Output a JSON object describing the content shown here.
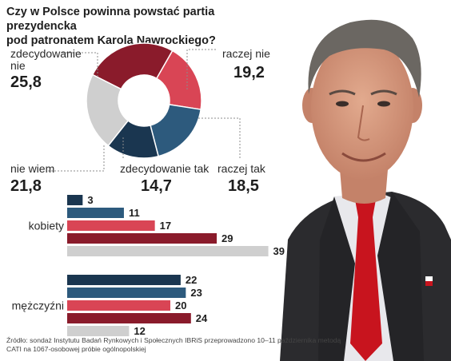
{
  "title": {
    "line1": "Czy w Polsce powinna powstać partia prezydencka",
    "line2": "pod patronatem Karola Nawrockiego?"
  },
  "chart_data": [
    {
      "type": "pie",
      "variant": "donut",
      "slices": [
        {
          "label_line1": "zdecydowanie",
          "label_line2": "nie",
          "value": 25.8,
          "value_text": "25,8",
          "color": "#8a1b2b"
        },
        {
          "label_line1": "raczej nie",
          "label_line2": "",
          "value": 19.2,
          "value_text": "19,2",
          "color": "#d94555"
        },
        {
          "label_line1": "raczej tak",
          "label_line2": "",
          "value": 18.5,
          "value_text": "18,5",
          "color": "#2d5a7d"
        },
        {
          "label_line1": "zdecydowanie tak",
          "label_line2": "",
          "value": 14.7,
          "value_text": "14,7",
          "color": "#1a3650"
        },
        {
          "label_line1": "nie wiem",
          "label_line2": "",
          "value": 21.8,
          "value_text": "21,8",
          "color": "#cfcfcf"
        }
      ]
    },
    {
      "type": "bar",
      "orientation": "horizontal",
      "groups": [
        {
          "name": "kobiety",
          "values": [
            3,
            11,
            17,
            29,
            39
          ]
        },
        {
          "name": "mężczyźni",
          "values": [
            22,
            23,
            20,
            24,
            12
          ]
        }
      ],
      "series_colors": [
        "#1a3650",
        "#2d5a7d",
        "#d94555",
        "#8a1b2b",
        "#cfcfcf"
      ]
    }
  ],
  "source": {
    "line1": "Źródło: sondaż Instytutu Badań Rynkowych i Społecznych IBRiS przeprowadzono 10–11 października metodą",
    "line2": "CATI na 1067-osobowej próbie ogólnopolskiej"
  },
  "photo": {
    "suit_color": "#2b2b2e",
    "tie_color": "#c8141e",
    "skin_color": "#d79a80"
  }
}
